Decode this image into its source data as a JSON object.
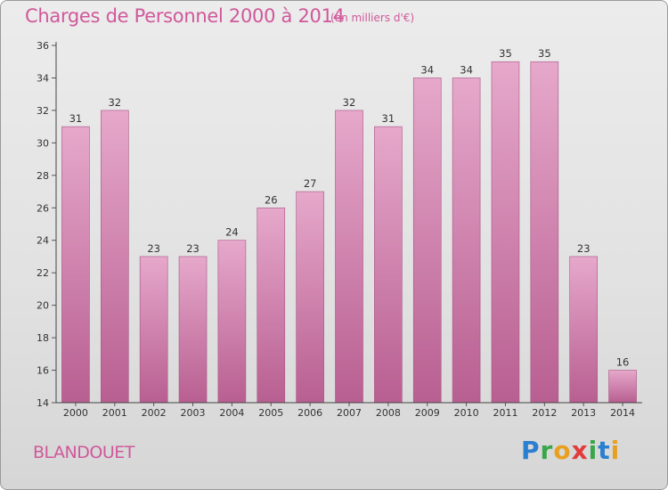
{
  "title": "Charges de Personnel 2000 à 2014",
  "unit_note": "(en milliers d'€)",
  "commune": "BLANDOUET",
  "logo_text": "Proxiti",
  "colors": {
    "bar": "#c7689c",
    "bar_light": "#e6a8cb",
    "title": "#d0589a"
  },
  "chart_data": {
    "type": "bar",
    "title": "Charges de Personnel 2000 à 2014",
    "subtitle": "(en milliers d'€)",
    "categories": [
      "2000",
      "2001",
      "2002",
      "2003",
      "2004",
      "2005",
      "2006",
      "2007",
      "2008",
      "2009",
      "2010",
      "2011",
      "2012",
      "2013",
      "2014"
    ],
    "values": [
      31,
      32,
      23,
      23,
      24,
      26,
      27,
      32,
      31,
      34,
      34,
      35,
      35,
      23,
      16
    ],
    "ylim": [
      14,
      36
    ],
    "yticks": [
      14,
      16,
      18,
      20,
      22,
      24,
      26,
      28,
      30,
      32,
      34,
      36
    ],
    "grid": false,
    "legend": "none"
  }
}
